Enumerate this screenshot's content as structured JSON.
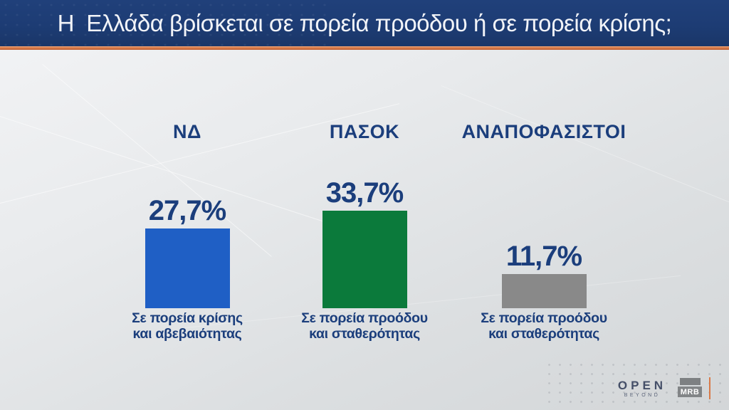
{
  "header": {
    "title": "Η  Ελλάδα βρίσκεται σε πορεία προόδου ή σε πορεία κρίσης;"
  },
  "chart_data": {
    "type": "bar",
    "title": "Η Ελλάδα βρίσκεται σε πορεία προόδου ή σε πορεία κρίσης;",
    "categories": [
      "ΝΔ",
      "ΠΑΣΟΚ",
      "ΑΝΑΠΟΦΑΣΙΣΤΟΙ"
    ],
    "values": [
      27.7,
      33.7,
      11.7
    ],
    "value_labels": [
      "27,7%",
      "33,7%",
      "11,7%"
    ],
    "bar_colors": [
      "#1f5fc5",
      "#0b7a3b",
      "#898989"
    ],
    "captions": [
      {
        "line1": "Σε πορεία κρίσης",
        "line2": "και αβεβαιότητας"
      },
      {
        "line1": "Σε πορεία προόδου",
        "line2": "και σταθερότητας"
      },
      {
        "line1": "Σε πορεία προόδου",
        "line2": "και σταθερότητας"
      }
    ],
    "unit": "%",
    "ylim": [
      0,
      35
    ],
    "grid": false,
    "legend": false,
    "orientation": "vertical"
  },
  "footer": {
    "open_logo": "OPEN",
    "open_tagline": "BEYOND",
    "mrb_label": "MRB"
  },
  "colors": {
    "banner": "#1d3c74",
    "banner_text": "#f2f4f8",
    "accent_orange": "#d97a48",
    "text_navy": "#1b3e7c",
    "bar_blue": "#1f5fc5",
    "bar_green": "#0b7a3b",
    "bar_gray": "#898989"
  }
}
